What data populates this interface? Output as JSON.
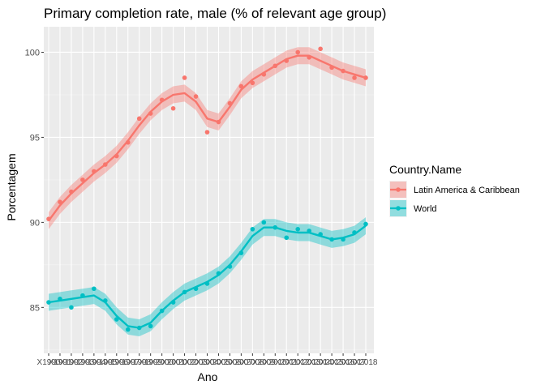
{
  "chart_data": {
    "type": "line",
    "title": "Primary completion rate, male (% of relevant age group)",
    "xlabel": "Ano",
    "ylabel": "Porcentagem",
    "x": [
      "X1990",
      "X1991",
      "X1992",
      "X1993",
      "X1994",
      "X1995",
      "X1996",
      "X1997",
      "X1998",
      "X1999",
      "X2000",
      "X2001",
      "X2002",
      "X2003",
      "X2004",
      "X2005",
      "X2006",
      "X2007",
      "X2008",
      "X2009",
      "X2010",
      "X2011",
      "X2012",
      "X2013",
      "X2014",
      "X2015",
      "X2016",
      "X2017",
      "X2018"
    ],
    "x_tick_labels": [
      "X1990",
      "X1991",
      "X1992",
      "X1993",
      "X1994",
      "X1995",
      "X1996",
      "X1997",
      "X1998",
      "X1999",
      "X2000",
      "X2001",
      "X2002",
      "X2003",
      "X2004",
      "X2005",
      "X2006",
      "X2007",
      "X2008",
      "X2009",
      "X2010",
      "X2011",
      "X2012",
      "X2013",
      "X2014",
      "X2015",
      "X2016",
      "X2017",
      "X2018"
    ],
    "y_ticks": [
      85,
      90,
      95,
      100
    ],
    "ylim": [
      82.3,
      101.5
    ],
    "grid": true,
    "legend": {
      "title": "Country.Name",
      "position": "right"
    },
    "series": [
      {
        "name": "Latin America & Caribbean",
        "color": "#F8766D",
        "values": [
          90.2,
          91.2,
          91.8,
          92.5,
          93.0,
          93.4,
          93.9,
          94.7,
          96.1,
          96.4,
          97.2,
          96.7,
          98.5,
          97.4,
          95.3,
          95.9,
          97.0,
          98.0,
          98.2,
          98.7,
          99.2,
          99.5,
          100.0,
          99.7,
          100.2,
          99.1,
          98.9,
          98.5,
          98.5
        ],
        "smooth": [
          90.1,
          91.0,
          91.7,
          92.3,
          92.9,
          93.4,
          94.0,
          94.8,
          95.7,
          96.5,
          97.1,
          97.5,
          97.6,
          97.1,
          96.1,
          95.9,
          96.8,
          97.8,
          98.4,
          98.8,
          99.2,
          99.6,
          99.8,
          99.8,
          99.5,
          99.2,
          98.9,
          98.7,
          98.5
        ]
      },
      {
        "name": "World",
        "color": "#00BFC4",
        "values": [
          85.3,
          85.5,
          85.0,
          85.7,
          86.1,
          85.4,
          84.3,
          83.7,
          83.8,
          83.9,
          84.8,
          85.3,
          85.9,
          86.1,
          86.4,
          87.0,
          87.4,
          88.2,
          89.6,
          90.0,
          89.7,
          89.1,
          89.6,
          89.5,
          89.3,
          89.0,
          89.0,
          89.4,
          89.9
        ],
        "smooth": [
          85.3,
          85.4,
          85.5,
          85.6,
          85.7,
          85.3,
          84.5,
          83.9,
          83.8,
          84.1,
          84.8,
          85.4,
          85.9,
          86.2,
          86.5,
          86.9,
          87.5,
          88.3,
          89.2,
          89.7,
          89.7,
          89.5,
          89.4,
          89.4,
          89.2,
          89.0,
          89.1,
          89.3,
          89.8
        ]
      }
    ]
  }
}
